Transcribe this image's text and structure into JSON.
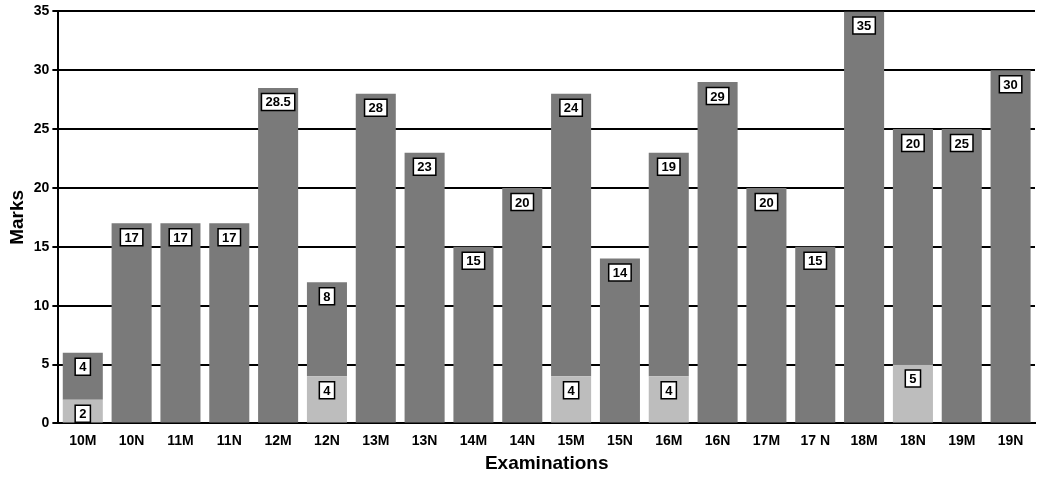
{
  "chart_data": {
    "type": "bar",
    "xlabel": "Examinations",
    "ylabel": "Marks",
    "categories": [
      "10M",
      "10N",
      "11M",
      "11N",
      "12M",
      "12N",
      "13M",
      "13N",
      "14M",
      "14N",
      "15M",
      "15N",
      "16M",
      "16N",
      "17M",
      "17 N",
      "18M",
      "18N",
      "19M",
      "19N"
    ],
    "stacked": true,
    "series": [
      {
        "color": "#bdbdbd",
        "values": [
          2,
          null,
          null,
          null,
          null,
          4,
          null,
          null,
          null,
          null,
          4,
          null,
          4,
          null,
          null,
          null,
          null,
          5,
          null,
          null
        ]
      },
      {
        "color": "#7a7a7a",
        "values": [
          4,
          17,
          17,
          17,
          28.5,
          8,
          28,
          23,
          15,
          20,
          24,
          14,
          19,
          29,
          20,
          15,
          35,
          20,
          25,
          30
        ]
      }
    ],
    "ylim": [
      0,
      35
    ],
    "yticks": [
      0,
      5,
      10,
      15,
      20,
      25,
      30,
      35
    ],
    "grid": "y",
    "data_labels": true
  }
}
